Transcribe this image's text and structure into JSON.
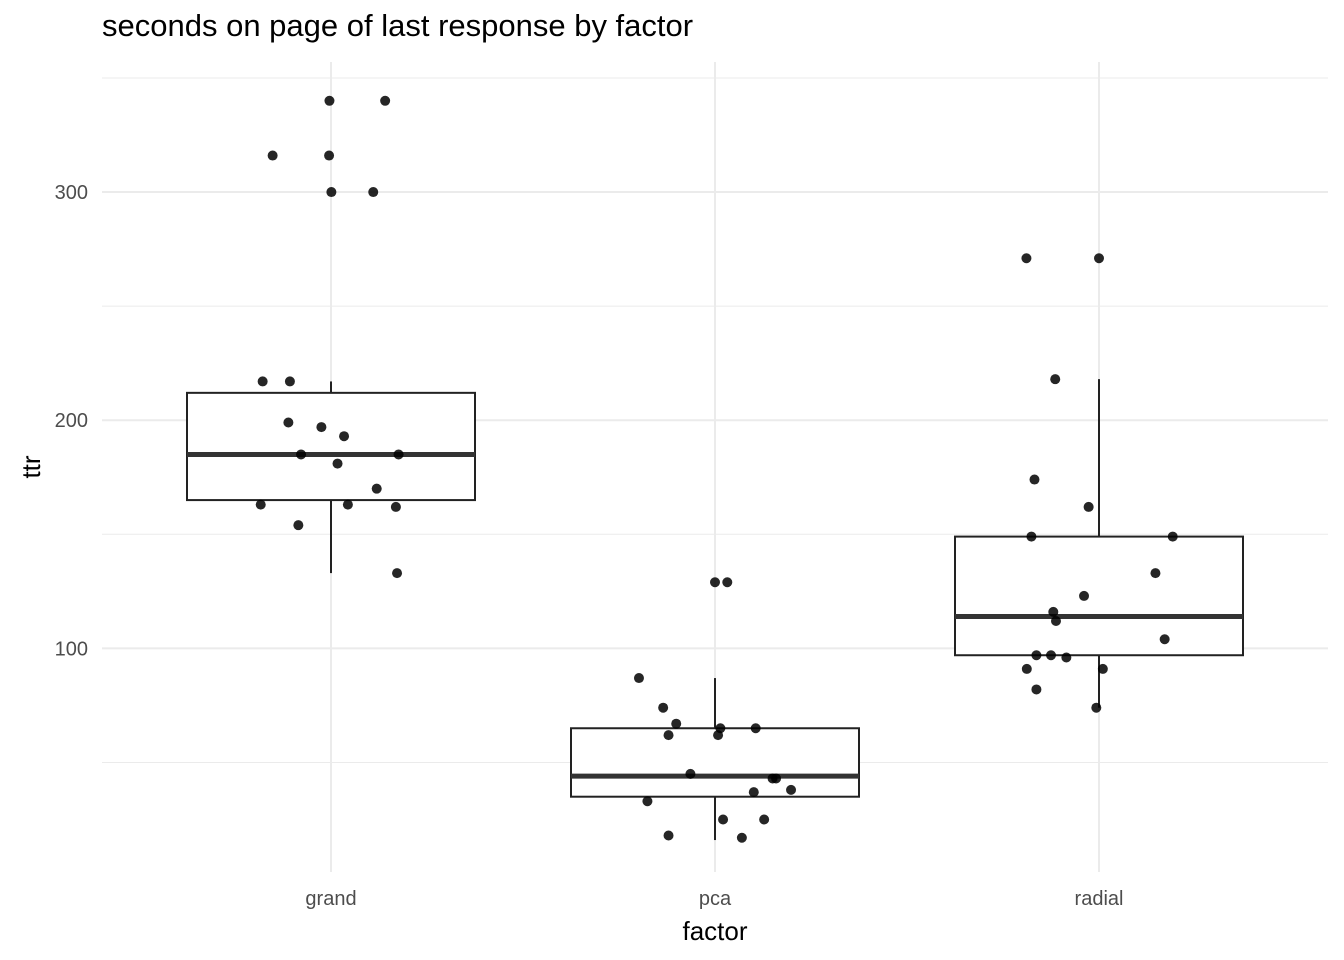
{
  "chart_data": {
    "type": "box",
    "title": "seconds on page of last response by factor",
    "xlabel": "factor",
    "ylabel": "ttr",
    "categories": [
      "grand",
      "pca",
      "radial"
    ],
    "ylim": [
      2,
      357
    ],
    "yticks": [
      100,
      200,
      300
    ],
    "grid": true,
    "legend": "none",
    "boxes": [
      {
        "category": "grand",
        "lower_whisker": 133,
        "q1": 165,
        "median": 185,
        "q3": 212,
        "upper_whisker": 217
      },
      {
        "category": "pca",
        "lower_whisker": 16,
        "q1": 35,
        "median": 44,
        "q3": 65,
        "upper_whisker": 87
      },
      {
        "category": "radial",
        "lower_whisker": 74,
        "q1": 97,
        "median": 114,
        "q3": 149,
        "upper_whisker": 218
      }
    ],
    "points": {
      "grand": [
        340,
        340,
        316,
        316,
        300,
        300,
        217,
        217,
        199,
        197,
        193,
        185,
        185,
        181,
        170,
        163,
        163,
        162,
        154,
        133
      ],
      "pca": [
        129,
        129,
        87,
        74,
        67,
        65,
        65,
        62,
        62,
        45,
        43,
        43,
        38,
        37,
        33,
        25,
        25,
        18,
        17
      ],
      "radial": [
        271,
        271,
        218,
        174,
        162,
        149,
        149,
        133,
        123,
        116,
        112,
        104,
        97,
        97,
        96,
        91,
        91,
        82,
        74
      ]
    },
    "point_jitter": {
      "grand": [
        -0.004,
        0.141,
        -0.152,
        -0.005,
        0.001,
        0.11,
        -0.178,
        -0.107,
        -0.111,
        -0.025,
        0.034,
        -0.078,
        0.176,
        0.017,
        0.119,
        -0.183,
        0.044,
        0.169,
        -0.085,
        0.172
      ],
      "pca": [
        0.0,
        0.032,
        -0.198,
        -0.135,
        -0.101,
        0.106,
        0.014,
        -0.121,
        0.008,
        -0.064,
        0.15,
        0.159,
        0.198,
        0.101,
        -0.176,
        0.021,
        0.128,
        -0.121,
        0.07
      ],
      "radial": [
        -0.189,
        0.0,
        -0.114,
        -0.168,
        -0.027,
        -0.176,
        0.192,
        0.147,
        -0.039,
        -0.119,
        -0.112,
        0.171,
        -0.163,
        -0.125,
        -0.085,
        -0.188,
        0.01,
        -0.163,
        -0.007
      ]
    },
    "colors": {
      "points": "#000000",
      "box_stroke": "#222222",
      "median": "#333333",
      "grid": "#ebebeb"
    }
  }
}
